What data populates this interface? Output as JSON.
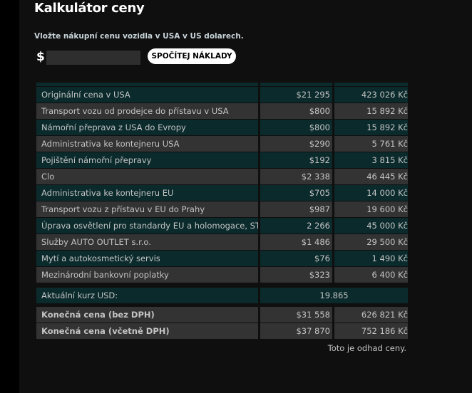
{
  "title": "Kalkulátor ceny",
  "intro": "Vložte nákupní cenu vozidla v USA v US dolarech.",
  "currency_symbol": "$",
  "price_input": {
    "value": "",
    "placeholder": ""
  },
  "calc_button": "SPOČÍTEJ NÁKLADY",
  "rows": [
    {
      "label": "Originální cena v USA",
      "usd": "$21 295",
      "czk": "423 026 Kč"
    },
    {
      "label": "Transport vozu od prodejce do přístavu v USA",
      "usd": "$800",
      "czk": "15 892 Kč"
    },
    {
      "label": "Námořní přeprava z USA do Evropy",
      "usd": "$800",
      "czk": "15 892 Kč"
    },
    {
      "label": "Administrativa ke kontejneru USA",
      "usd": "$290",
      "czk": "5 761 Kč"
    },
    {
      "label": "Pojištění námořní přepravy",
      "usd": "$192",
      "czk": "3 815 Kč"
    },
    {
      "label": "Clo",
      "usd": "$2 338",
      "czk": "46 445 Kč"
    },
    {
      "label": "Administrativa ke kontejneru EU",
      "usd": "$705",
      "czk": "14 000 Kč"
    },
    {
      "label": "Transport vozu z přístavu v EU do Prahy",
      "usd": "$987",
      "czk": "19 600 Kč"
    },
    {
      "label": "Úprava osvětlení pro standardy EU a holomogace, STK",
      "usd": "2 266",
      "czk": "45 000 Kč"
    },
    {
      "label": "Služby AUTO OUTLET s.r.o.",
      "usd": "$1 486",
      "czk": "29 500 Kč"
    },
    {
      "label": "Mytí a autokosmetický servis",
      "usd": "$76",
      "czk": "1 490 Kč"
    },
    {
      "label": "Mezinárodní bankovní poplatky",
      "usd": "$323",
      "czk": "6 400 Kč"
    }
  ],
  "rate": {
    "label": "Aktuální kurz USD:",
    "value": "19.865"
  },
  "totals": [
    {
      "label": "Konečná cena (bez DPH)",
      "usd": "$31 558",
      "czk": "626 821 Kč"
    },
    {
      "label": "Konečná cena (včetně DPH)",
      "usd": "$37 870",
      "czk": "752 186 Kč"
    }
  ],
  "note": "Toto je odhad ceny.",
  "colors": {
    "row_teal": "#0b2a2c",
    "row_gray": "#333333",
    "background": "#0f0f0f"
  }
}
